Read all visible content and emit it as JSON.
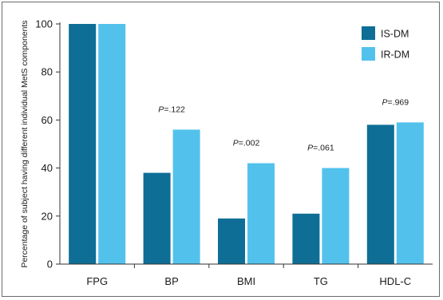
{
  "chart_data": {
    "type": "bar",
    "title": "",
    "xlabel": "",
    "ylabel": "Percentage of subject having different individual MetS components",
    "ylim": [
      0,
      100
    ],
    "yticks": [
      0,
      20,
      40,
      60,
      80,
      100
    ],
    "categories": [
      "FPG",
      "BP",
      "BMI",
      "TG",
      "HDL-C"
    ],
    "series": [
      {
        "name": "IS-DM",
        "color": "#0e6e96",
        "values": [
          100,
          38,
          19,
          21,
          58
        ]
      },
      {
        "name": "IR-DM",
        "color": "#52c2ec",
        "values": [
          100,
          56,
          42,
          40,
          59
        ]
      }
    ],
    "annotations": [
      {
        "category": "BP",
        "prefix": "P",
        "text": "=.122"
      },
      {
        "category": "BMI",
        "prefix": "P",
        "text": "=.002"
      },
      {
        "category": "TG",
        "prefix": "P",
        "text": "=.061"
      },
      {
        "category": "HDL-C",
        "prefix": "P",
        "text": "=.969"
      }
    ],
    "legend_position": "top-right",
    "grid": false
  }
}
